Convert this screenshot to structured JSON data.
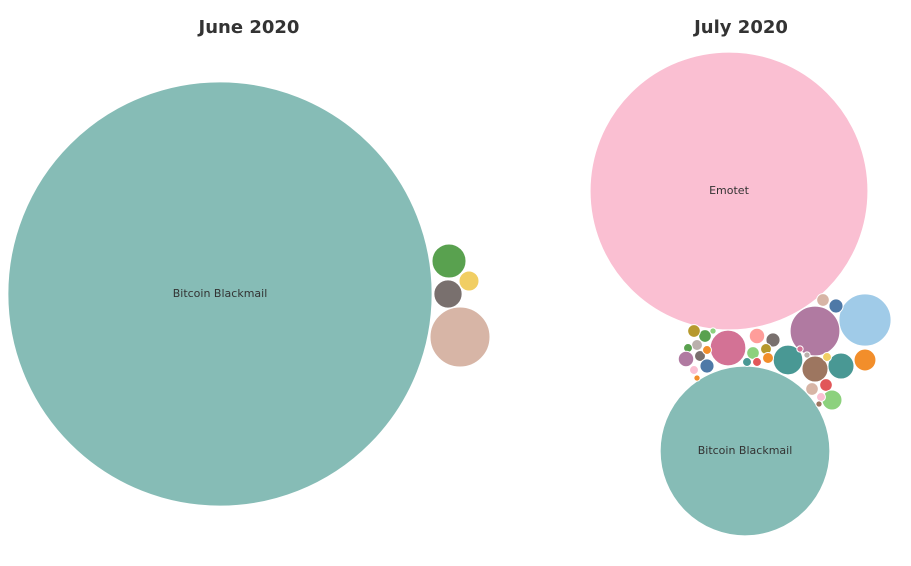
{
  "chart_data": [
    {
      "type": "bubble",
      "title": "June 2020",
      "categories": [
        "Bitcoin Blackmail",
        null,
        null,
        null,
        null
      ],
      "values": [
        4500,
        29,
        10,
        20,
        90
      ],
      "colors": [
        "#86bcb6",
        "#59a14f",
        "#f1ce63",
        "#79706e",
        "#d7b5a6"
      ]
    },
    {
      "type": "bubble",
      "title": "July 2020",
      "categories": [
        "Emotet",
        "Bitcoin Blackmail",
        null,
        null,
        null,
        null,
        null,
        null,
        null,
        null,
        null,
        null,
        null,
        null,
        null,
        null,
        null,
        null,
        null,
        null,
        null,
        null,
        null,
        null,
        null,
        null,
        null,
        null,
        null,
        null,
        null,
        null,
        null,
        null,
        null,
        null,
        null
      ],
      "values": [
        1930,
        720,
        68,
        62,
        32,
        22,
        17,
        17,
        12,
        5,
        4,
        6,
        5,
        4,
        3,
        3,
        2,
        2,
        4,
        4,
        1,
        3,
        2,
        6,
        3,
        5,
        2,
        2,
        1,
        4,
        4,
        10,
        2,
        1,
        2,
        1,
        1
      ],
      "colors": [
        "#fabfd2",
        "#86bcb6",
        "#a0cbe8",
        "#b07aa1",
        "#d37295",
        "#499894",
        "#499894",
        "#9d7660",
        "#f28e2b",
        "#4e79a7",
        "#d7b5a6",
        "#ff9d9a",
        "#79706e",
        "#8cd17d",
        "#b6992d",
        "#f28e2b",
        "#e15759",
        "#499894",
        "#59a14f",
        "#b6992d",
        "#8cd17d",
        "#bab0ac",
        "#59a14f",
        "#b07aa1",
        "#79706e",
        "#4e79a7",
        "#f28e2b",
        "#fabfd2",
        "#f28e2b",
        "#e15759",
        "#d7b5a6",
        "#8cd17d",
        "#fabfd2",
        "#9d7660",
        "#f1ce63",
        "#bab0ac",
        "#d37295"
      ]
    }
  ]
}
